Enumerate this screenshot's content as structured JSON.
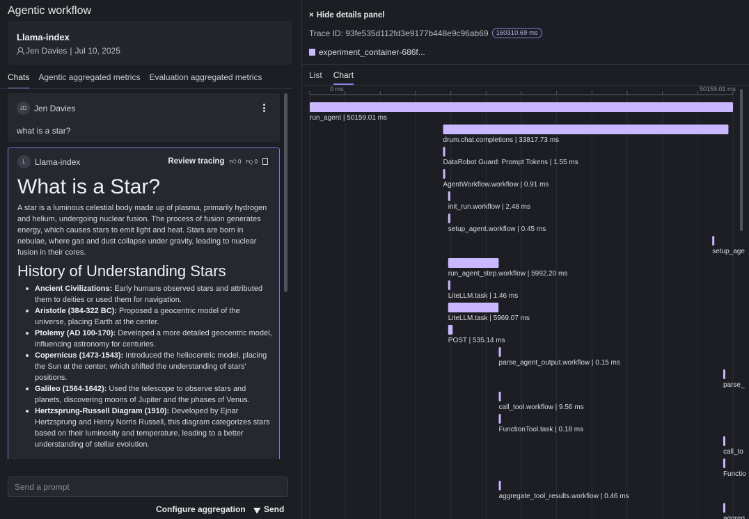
{
  "app": {
    "title": "Agentic workflow"
  },
  "project": {
    "name": "Llama-index",
    "author": "Jen Davies",
    "date": "Jul 10, 2025",
    "separator": "|"
  },
  "tabs": [
    {
      "label": "Chats",
      "active": true
    },
    {
      "label": "Agentic aggregated metrics",
      "active": false
    },
    {
      "label": "Evaluation aggregated metrics",
      "active": false
    }
  ],
  "user_message": {
    "initials": "JD",
    "name": "Jen Davies",
    "text": "what is a star?"
  },
  "bot_message": {
    "initial": "L",
    "name": "Llama-index",
    "review_label": "Review tracing",
    "likes": "0",
    "dislikes": "0",
    "h1": "What is a Star?",
    "intro": "A star is a luminous celestial body made up of plasma, primarily hydrogen and helium, undergoing nuclear fusion. The process of fusion generates energy, which causes stars to emit light and heat. Stars are born in nebulae, where gas and dust collapse under gravity, leading to nuclear fusion in their cores.",
    "h2": "History of Understanding Stars",
    "items": [
      {
        "term": "Ancient Civilizations:",
        "desc": " Early humans observed stars and attributed them to deities or used them for navigation."
      },
      {
        "term": "Aristotle (384-322 BC):",
        "desc": " Proposed a geocentric model of the universe, placing Earth at the center."
      },
      {
        "term": "Ptolemy (AD 100-170):",
        "desc": " Developed a more detailed geocentric model, influencing astronomy for centuries."
      },
      {
        "term": "Copernicus (1473-1543):",
        "desc": " Introduced the heliocentric model, placing the Sun at the center, which shifted the understanding of stars' positions."
      },
      {
        "term": "Galileo (1564-1642):",
        "desc": " Used the telescope to observe stars and planets, discovering moons of Jupiter and the phases of Venus."
      },
      {
        "term": "Hertzsprung-Russell Diagram (1910):",
        "desc": " Developed by Ejnar Hertzsprung and Henry Norris Russell, this diagram categorizes stars based on their luminosity and temperature, leading to a better understanding of stellar evolution."
      }
    ]
  },
  "prompt": {
    "placeholder": "Send a prompt"
  },
  "actions": {
    "configure_label": "Configure aggregation",
    "send_label": "Send"
  },
  "details": {
    "hide_label": "Hide details panel",
    "trace_label": "Trace ID: 93fe535d112fd3e9177b448e9c96ab69",
    "duration": "160310.69 ms",
    "container": "experiment_container-686f...",
    "tabs": [
      {
        "label": "List",
        "active": false
      },
      {
        "label": "Chart",
        "active": true
      }
    ]
  },
  "colors": {
    "span": "#c9b8ff",
    "accent": "#8f7fe8",
    "background": "#1c1e23"
  },
  "chart_data": {
    "type": "gantt",
    "axis_start_label": "0 ms",
    "axis_end_label": "50159.01 ms",
    "xlim": [
      0,
      50159.01
    ],
    "spans": [
      {
        "name": "run_agent",
        "label": "run_agent | 50159.01 ms",
        "start": 0,
        "duration": 50159.01
      },
      {
        "name": "drum.chat.completions",
        "label": "drum.chat.completions | 33817.73 ms",
        "start": 15800,
        "duration": 33817.73
      },
      {
        "name": "DataRobot Guard: Prompt Tokens",
        "label": "DataRobot Guard: Prompt Tokens | 1.55 ms",
        "start": 15800,
        "duration": 1.55
      },
      {
        "name": "AgentWorkflow.workflow",
        "label": "AgentWorkflow.workflow | 0.91 ms",
        "start": 15800,
        "duration": 0.91
      },
      {
        "name": "init_run.workflow",
        "label": "init_run.workflow | 2.48 ms",
        "start": 16400,
        "duration": 2.48
      },
      {
        "name": "setup_agent.workflow",
        "label": "setup_agent.workflow | 0.45 ms",
        "start": 16400,
        "duration": 0.45
      },
      {
        "name": "setup_agent",
        "label": "setup_age",
        "start": 47700,
        "duration": 0.1
      },
      {
        "name": "run_agent_step.workflow",
        "label": "run_agent_step.workflow | 5992.20 ms",
        "start": 16400,
        "duration": 5992.2
      },
      {
        "name": "LiteLLM.task",
        "label": "LiteLLM.task | 1.46 ms",
        "start": 16400,
        "duration": 1.46
      },
      {
        "name": "LiteLLM.task",
        "label": "LiteLLM.task | 5969.07 ms",
        "start": 16400,
        "duration": 5969.07
      },
      {
        "name": "POST",
        "label": "POST | 535.14 ms",
        "start": 16400,
        "duration": 535.14
      },
      {
        "name": "parse_agent_output.workflow",
        "label": "parse_agent_output.workflow | 0.15 ms",
        "start": 22400,
        "duration": 0.15
      },
      {
        "name": "parse",
        "label": "parse_",
        "start": 49000,
        "duration": 0.1
      },
      {
        "name": "call_tool.workflow",
        "label": "call_tool.workflow | 9.56 ms",
        "start": 22400,
        "duration": 9.56
      },
      {
        "name": "FunctionTool.task",
        "label": "FunctionTool.task | 0.18 ms",
        "start": 22400,
        "duration": 0.18
      },
      {
        "name": "call_to",
        "label": "call_to",
        "start": 49000,
        "duration": 0.1
      },
      {
        "name": "Functio",
        "label": "Functio",
        "start": 49000,
        "duration": 0.1
      },
      {
        "name": "aggregate_tool_results.workflow",
        "label": "aggregate_tool_results.workflow | 0.46 ms",
        "start": 22400,
        "duration": 0.46
      },
      {
        "name": "aggreg",
        "label": "aggreg",
        "start": 49000,
        "duration": 0.1
      }
    ]
  }
}
